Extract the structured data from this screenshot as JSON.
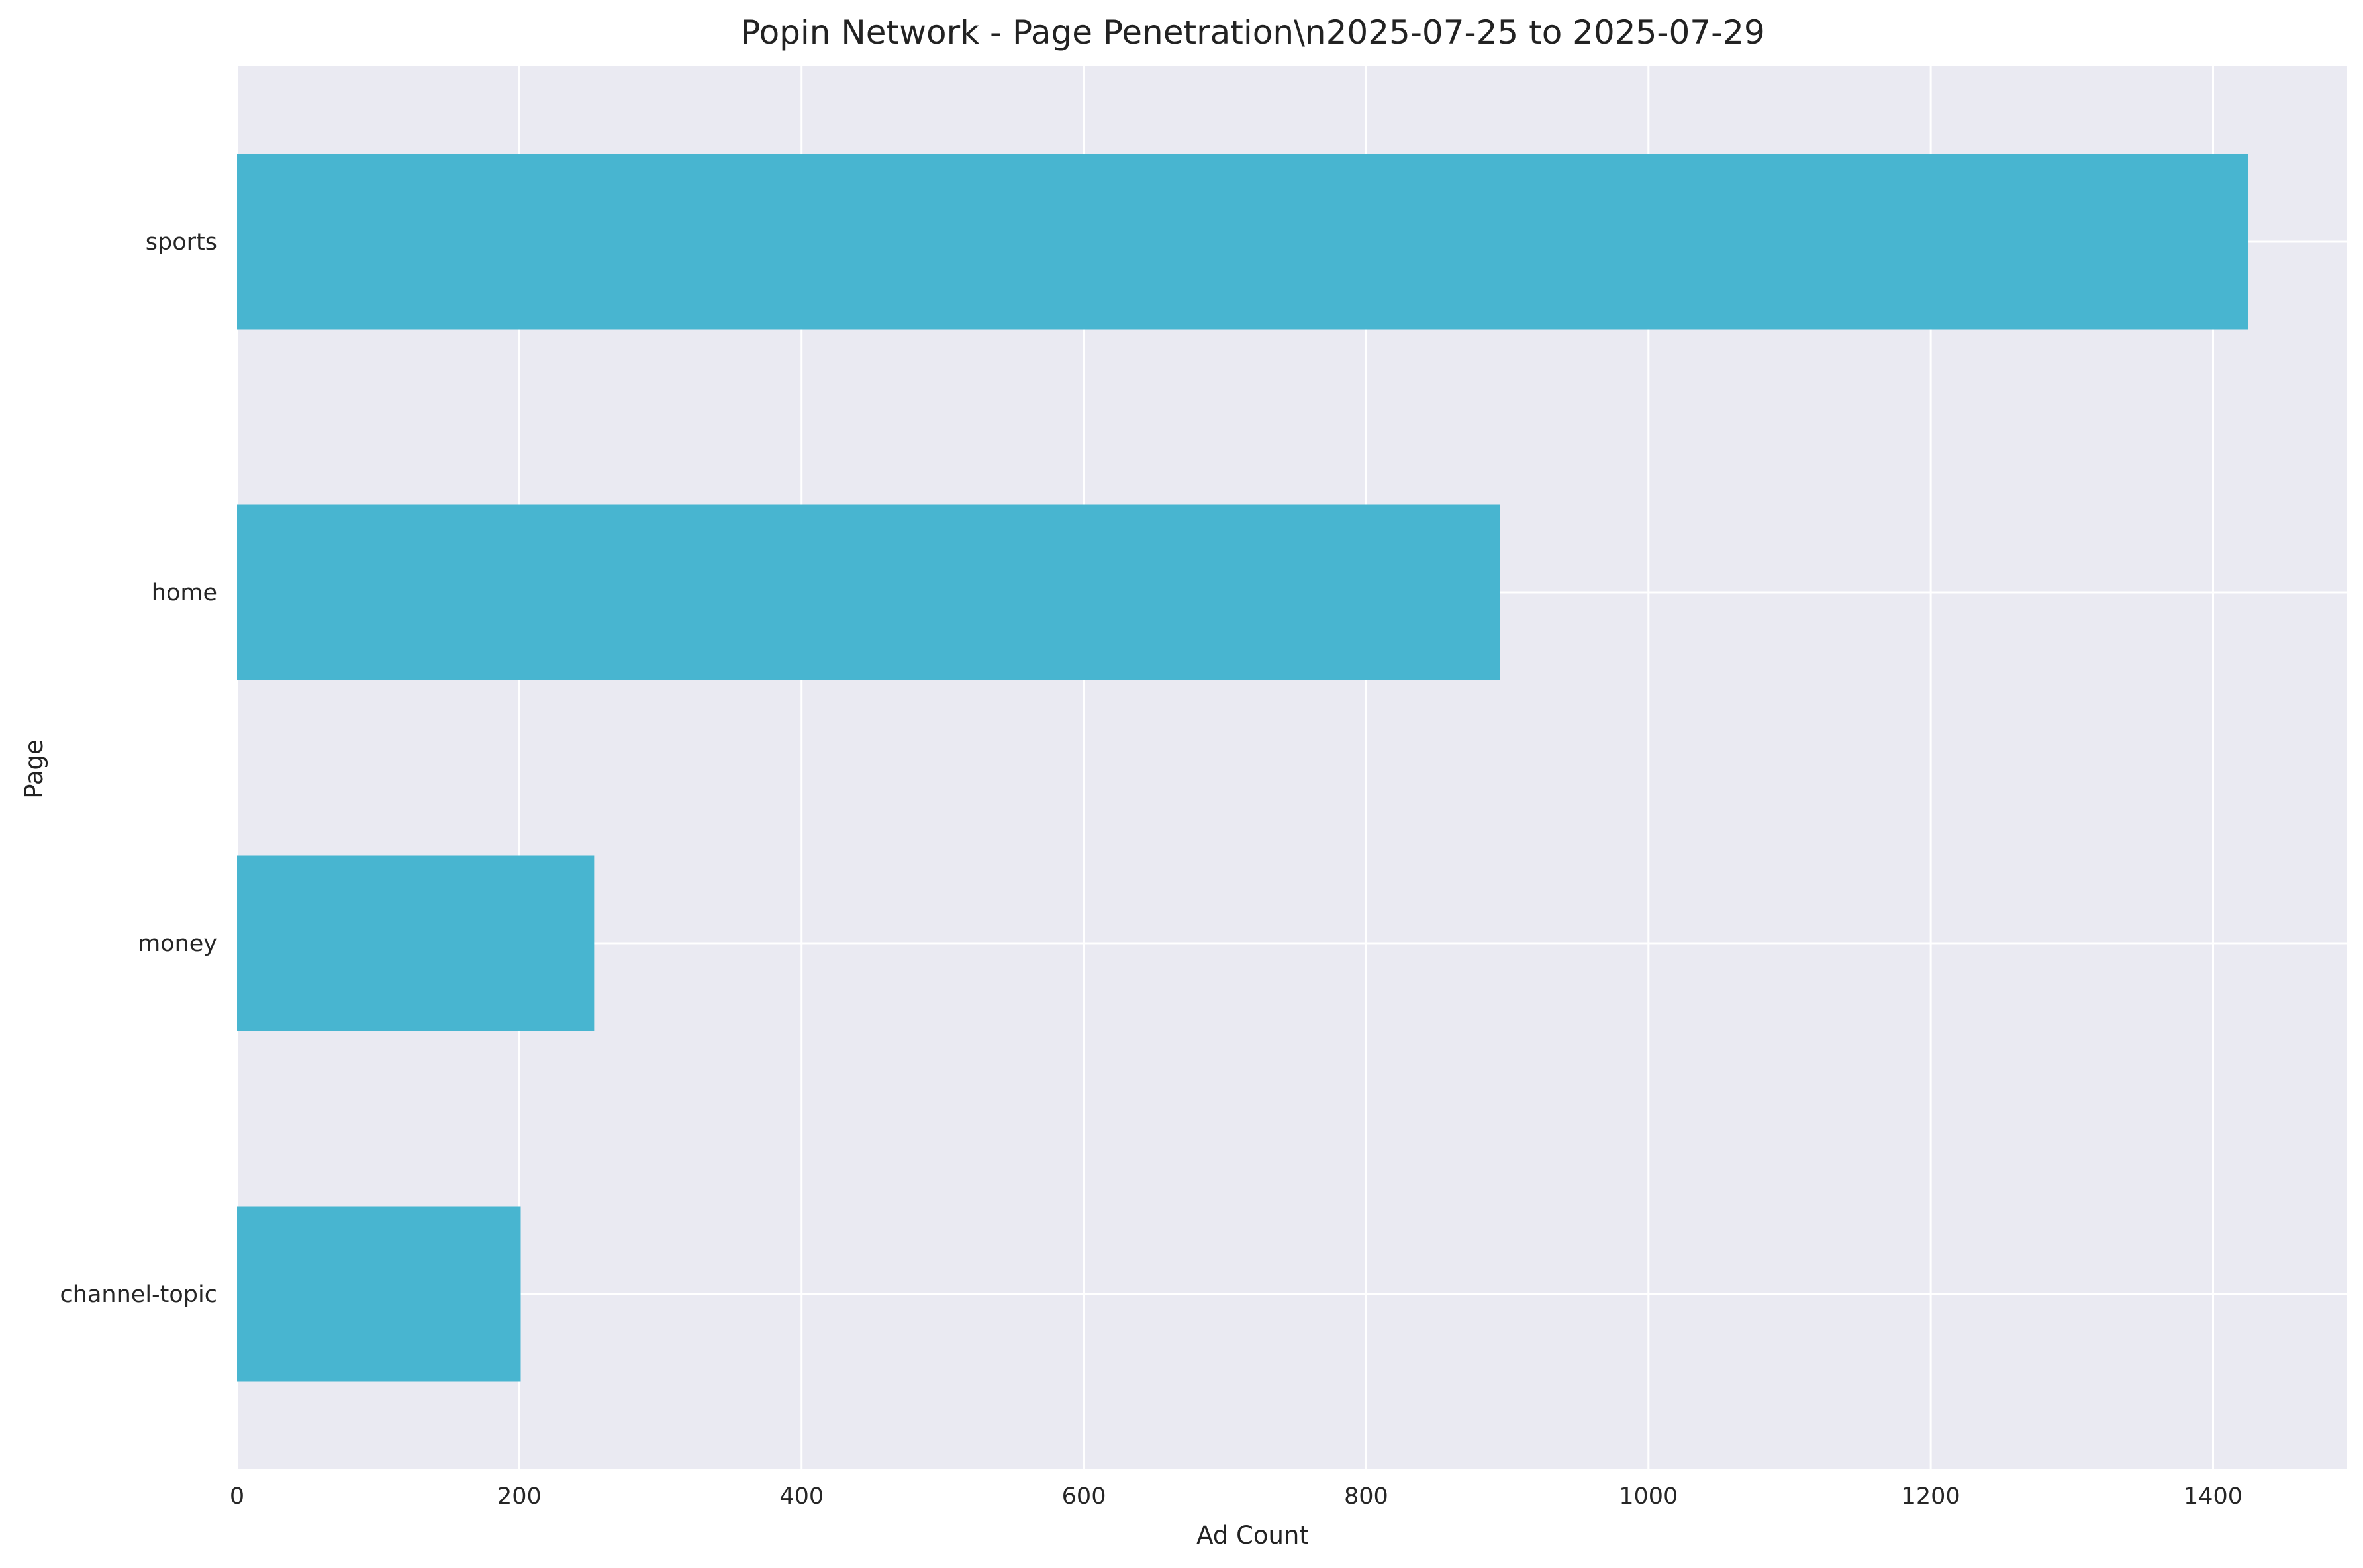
{
  "chart_data": {
    "type": "bar",
    "orientation": "horizontal",
    "title": "Popin Network - Page Penetration\\n2025-07-25 to 2025-07-29",
    "xlabel": "Ad Count",
    "ylabel": "Page",
    "categories": [
      "sports",
      "home",
      "money",
      "channel-topic"
    ],
    "values": [
      1425,
      895,
      253,
      201
    ],
    "xlim": [
      0,
      1495
    ],
    "xticks": [
      0,
      200,
      400,
      600,
      800,
      1000,
      1200,
      1400
    ],
    "xtick_labels": [
      "0",
      "200",
      "400",
      "600",
      "800",
      "1000",
      "1200",
      "1400"
    ],
    "grid": true,
    "legend": "none",
    "colors": {
      "bar": "#48B5D0",
      "plot_background": "#EAEAF2",
      "grid": "#FFFFFF"
    }
  }
}
